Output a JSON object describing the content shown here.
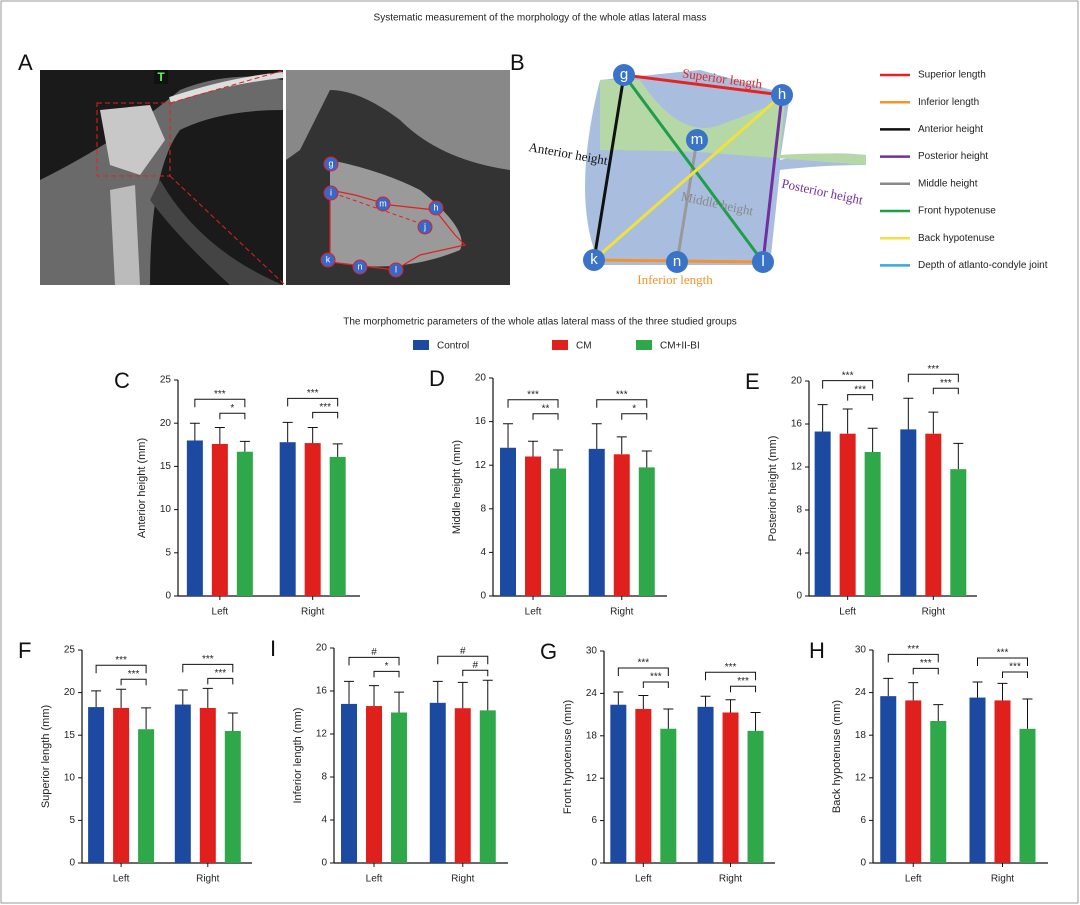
{
  "title": "Systematic measurement  of the morphology of the whole atlas lateral mass",
  "subtitle": "The morphometric parameters of the whole atlas lateral mass of the three studied groups",
  "groups": [
    {
      "name": "Control",
      "color": "#1c4aa0"
    },
    {
      "name": "CM",
      "color": "#e0201c"
    },
    {
      "name": "CM+II-BI",
      "color": "#2fa84a"
    }
  ],
  "panel_a": {
    "letter": "A",
    "tag": "T",
    "points": [
      "g",
      "i",
      "m",
      "h",
      "j",
      "k",
      "n",
      "l"
    ]
  },
  "panel_b": {
    "letter": "B",
    "points": [
      "g",
      "h",
      "m",
      "k",
      "n",
      "l"
    ],
    "line_labels": [
      {
        "text": "Superior length",
        "color": "#e8231f"
      },
      {
        "text": "Anterior height",
        "color": "#111111"
      },
      {
        "text": "Middle height",
        "color": "#888888"
      },
      {
        "text": "Posterior height",
        "color": "#7030a0"
      },
      {
        "text": "Inferior length",
        "color": "#f5922a"
      }
    ],
    "legend": [
      {
        "label": "Superior length",
        "color": "#e8231f"
      },
      {
        "label": "Inferior length",
        "color": "#f5922a"
      },
      {
        "label": "Anterior height",
        "color": "#111111"
      },
      {
        "label": "Posterior height",
        "color": "#7030a0"
      },
      {
        "label": "Middle height",
        "color": "#888888"
      },
      {
        "label": "Front hypotenuse",
        "color": "#1f9e4a"
      },
      {
        "label": "Back hypotenuse",
        "color": "#f0e040"
      },
      {
        "label": "Depth of atlanto-condyle joint",
        "color": "#38a8e0"
      }
    ]
  },
  "chart_data": [
    {
      "type": "bar",
      "panel": "C",
      "ylabel": "Anterior height (mm)",
      "categories": [
        "Left",
        "Right"
      ],
      "ylim": [
        0,
        25
      ],
      "yticks": [
        0,
        5,
        10,
        15,
        20,
        25
      ],
      "series": [
        {
          "values": [
            18.0,
            17.8
          ],
          "errors": [
            2.0,
            2.3
          ]
        },
        {
          "values": [
            17.6,
            17.7
          ],
          "errors": [
            1.9,
            1.8
          ]
        },
        {
          "values": [
            16.7,
            16.1
          ],
          "errors": [
            1.2,
            1.5
          ]
        }
      ],
      "significance": [
        [
          "***",
          "*"
        ],
        [
          "***",
          "***"
        ]
      ]
    },
    {
      "type": "bar",
      "panel": "D",
      "ylabel": "Middle height (mm)",
      "categories": [
        "Left",
        "Right"
      ],
      "ylim": [
        0,
        20
      ],
      "yticks": [
        0,
        4,
        8,
        12,
        16,
        20
      ],
      "series": [
        {
          "values": [
            13.6,
            13.5
          ],
          "errors": [
            2.2,
            2.3
          ]
        },
        {
          "values": [
            12.8,
            13.0
          ],
          "errors": [
            1.4,
            1.6
          ]
        },
        {
          "values": [
            11.7,
            11.8
          ],
          "errors": [
            1.7,
            1.5
          ]
        }
      ],
      "significance": [
        [
          "***",
          "**"
        ],
        [
          "***",
          "*"
        ]
      ]
    },
    {
      "type": "bar",
      "panel": "E",
      "ylabel": "Posterior height (mm)",
      "categories": [
        "Left",
        "Right"
      ],
      "ylim": [
        0,
        20
      ],
      "yticks": [
        0,
        4,
        8,
        12,
        16,
        20
      ],
      "series": [
        {
          "values": [
            15.3,
            15.5
          ],
          "errors": [
            2.5,
            2.9
          ]
        },
        {
          "values": [
            15.1,
            15.1
          ],
          "errors": [
            2.3,
            2.0
          ]
        },
        {
          "values": [
            13.4,
            11.8
          ],
          "errors": [
            2.2,
            2.4
          ]
        }
      ],
      "significance": [
        [
          "***",
          "***"
        ],
        [
          "***",
          "***"
        ]
      ]
    },
    {
      "type": "bar",
      "panel": "F",
      "ylabel": "Superior length (mm)",
      "categories": [
        "Left",
        "Right"
      ],
      "ylim": [
        0,
        25
      ],
      "yticks": [
        0,
        5,
        10,
        15,
        20,
        25
      ],
      "series": [
        {
          "values": [
            18.3,
            18.6
          ],
          "errors": [
            1.9,
            1.7
          ]
        },
        {
          "values": [
            18.2,
            18.2
          ],
          "errors": [
            2.2,
            2.3
          ]
        },
        {
          "values": [
            15.7,
            15.5
          ],
          "errors": [
            2.5,
            2.1
          ]
        }
      ],
      "significance": [
        [
          "***",
          "***"
        ],
        [
          "***",
          "***"
        ]
      ]
    },
    {
      "type": "bar",
      "panel": "I",
      "ylabel": "Inferior length (mm)",
      "categories": [
        "Left",
        "Right"
      ],
      "ylim": [
        0,
        20
      ],
      "yticks": [
        0,
        4,
        8,
        12,
        16,
        20
      ],
      "series": [
        {
          "values": [
            14.8,
            14.9
          ],
          "errors": [
            2.1,
            2.0
          ]
        },
        {
          "values": [
            14.6,
            14.4
          ],
          "errors": [
            1.9,
            2.4
          ]
        },
        {
          "values": [
            14.0,
            14.2
          ],
          "errors": [
            1.9,
            2.8
          ]
        }
      ],
      "significance": [
        [
          "#",
          "*"
        ],
        [
          "#",
          "#"
        ]
      ]
    },
    {
      "type": "bar",
      "panel": "G",
      "ylabel": "Front hypotenuse (mm)",
      "categories": [
        "Left",
        "Right"
      ],
      "ylim": [
        0,
        30
      ],
      "yticks": [
        0,
        6,
        12,
        18,
        24,
        30
      ],
      "series": [
        {
          "values": [
            22.4,
            22.1
          ],
          "errors": [
            1.8,
            1.5
          ]
        },
        {
          "values": [
            21.8,
            21.3
          ],
          "errors": [
            1.9,
            1.8
          ]
        },
        {
          "values": [
            19.0,
            18.7
          ],
          "errors": [
            2.8,
            2.6
          ]
        }
      ],
      "significance": [
        [
          "***",
          "***"
        ],
        [
          "***",
          "***"
        ]
      ]
    },
    {
      "type": "bar",
      "panel": "H",
      "ylabel": "Back hypotenuse (mm)",
      "categories": [
        "Left",
        "Right"
      ],
      "ylim": [
        0,
        30
      ],
      "yticks": [
        0,
        6,
        12,
        18,
        24,
        30
      ],
      "series": [
        {
          "values": [
            23.5,
            23.3
          ],
          "errors": [
            2.5,
            2.2
          ]
        },
        {
          "values": [
            22.9,
            22.9
          ],
          "errors": [
            2.5,
            2.4
          ]
        },
        {
          "values": [
            20.0,
            18.9
          ],
          "errors": [
            2.3,
            4.2
          ]
        }
      ],
      "significance": [
        [
          "***",
          "***"
        ],
        [
          "***",
          "***"
        ]
      ]
    }
  ]
}
